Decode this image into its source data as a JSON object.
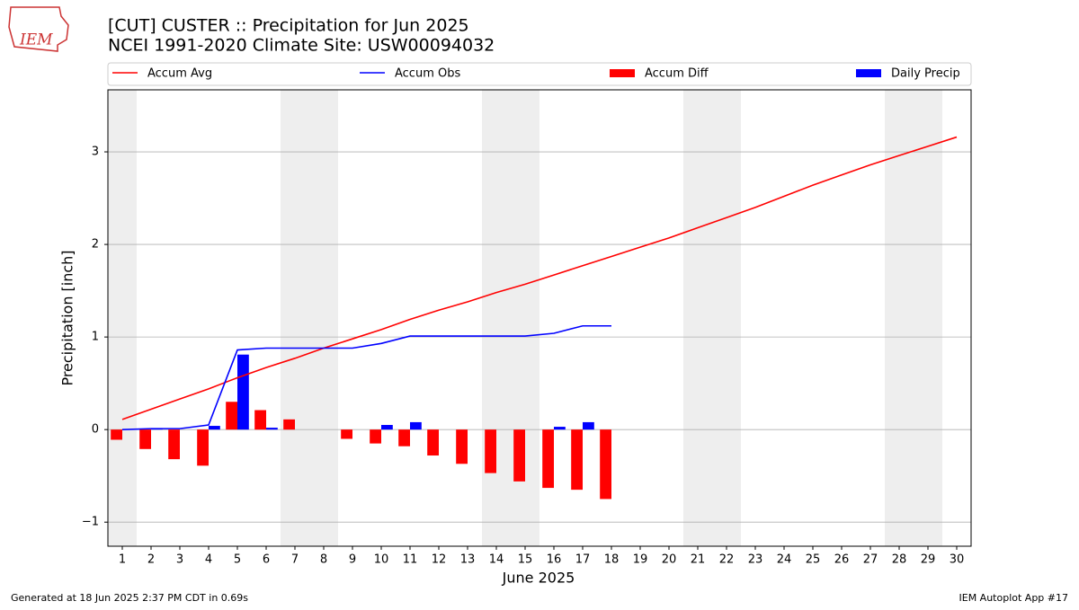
{
  "logo_text": "IEM",
  "footer_left": "Generated at 18 Jun 2025 2:37 PM CDT in 0.69s",
  "footer_right": "IEM Autoplot App #17",
  "chart_data": {
    "type": "combo",
    "title": "[CUT] CUSTER :: Precipitation for Jun 2025",
    "subtitle": "NCEI 1991-2020 Climate Site: USW00094032",
    "x_label": "June 2025",
    "y_label": "Precipitation [inch]",
    "x": [
      1,
      2,
      3,
      4,
      5,
      6,
      7,
      8,
      9,
      10,
      11,
      12,
      13,
      14,
      15,
      16,
      17,
      18,
      19,
      20,
      21,
      22,
      23,
      24,
      25,
      26,
      27,
      28,
      29,
      30
    ],
    "xlim": [
      0.5,
      30.5
    ],
    "xticks": [
      1,
      2,
      3,
      4,
      5,
      6,
      7,
      8,
      9,
      10,
      11,
      12,
      13,
      14,
      15,
      16,
      17,
      18,
      19,
      20,
      21,
      22,
      23,
      24,
      25,
      26,
      27,
      28,
      29,
      30
    ],
    "ylim": [
      -1.26,
      3.67
    ],
    "yticks": [
      {
        "value": -1,
        "label": "−1"
      },
      0,
      1,
      2,
      3
    ],
    "grid": true,
    "shaded_spans": [
      [
        0.5,
        1.5
      ],
      [
        6.5,
        8.5
      ],
      [
        13.5,
        15.5
      ],
      [
        20.5,
        22.5
      ],
      [
        27.5,
        29.5
      ]
    ],
    "shade_color": "#eeeeee",
    "series": [
      {
        "name": "Accum Avg",
        "type": "line",
        "color": "#ff0000",
        "values": [
          0.11,
          0.22,
          0.33,
          0.44,
          0.56,
          0.67,
          0.77,
          0.88,
          0.98,
          1.08,
          1.19,
          1.29,
          1.38,
          1.48,
          1.57,
          1.67,
          1.77,
          1.87,
          1.97,
          2.07,
          2.18,
          2.29,
          2.4,
          2.52,
          2.64,
          2.75,
          2.86,
          2.96,
          3.06,
          3.16
        ]
      },
      {
        "name": "Accum Obs",
        "type": "line",
        "color": "#0000ff",
        "values": [
          0,
          0.01,
          0.01,
          0.05,
          0.86,
          0.88,
          0.88,
          0.88,
          0.88,
          0.93,
          1.01,
          1.01,
          1.01,
          1.01,
          1.01,
          1.04,
          1.12,
          1.12,
          null,
          null,
          null,
          null,
          null,
          null,
          null,
          null,
          null,
          null,
          null,
          null
        ]
      },
      {
        "name": "Accum Diff",
        "type": "bar",
        "offset": "left",
        "color": "#ff0000",
        "values": [
          -0.11,
          -0.21,
          -0.32,
          -0.39,
          0.3,
          0.21,
          0.11,
          0,
          -0.1,
          -0.15,
          -0.18,
          -0.28,
          -0.37,
          -0.47,
          -0.56,
          -0.63,
          -0.65,
          -0.75,
          null,
          null,
          null,
          null,
          null,
          null,
          null,
          null,
          null,
          null,
          null,
          null
        ]
      },
      {
        "name": "Daily Precip",
        "type": "bar",
        "offset": "right",
        "color": "#0000ff",
        "values": [
          0,
          0.01,
          0,
          0.04,
          0.81,
          0.02,
          0,
          0,
          0,
          0.05,
          0.08,
          0,
          0,
          0,
          0,
          0.03,
          0.08,
          0,
          null,
          null,
          null,
          null,
          null,
          null,
          null,
          null,
          null,
          null,
          null,
          null
        ]
      }
    ]
  }
}
